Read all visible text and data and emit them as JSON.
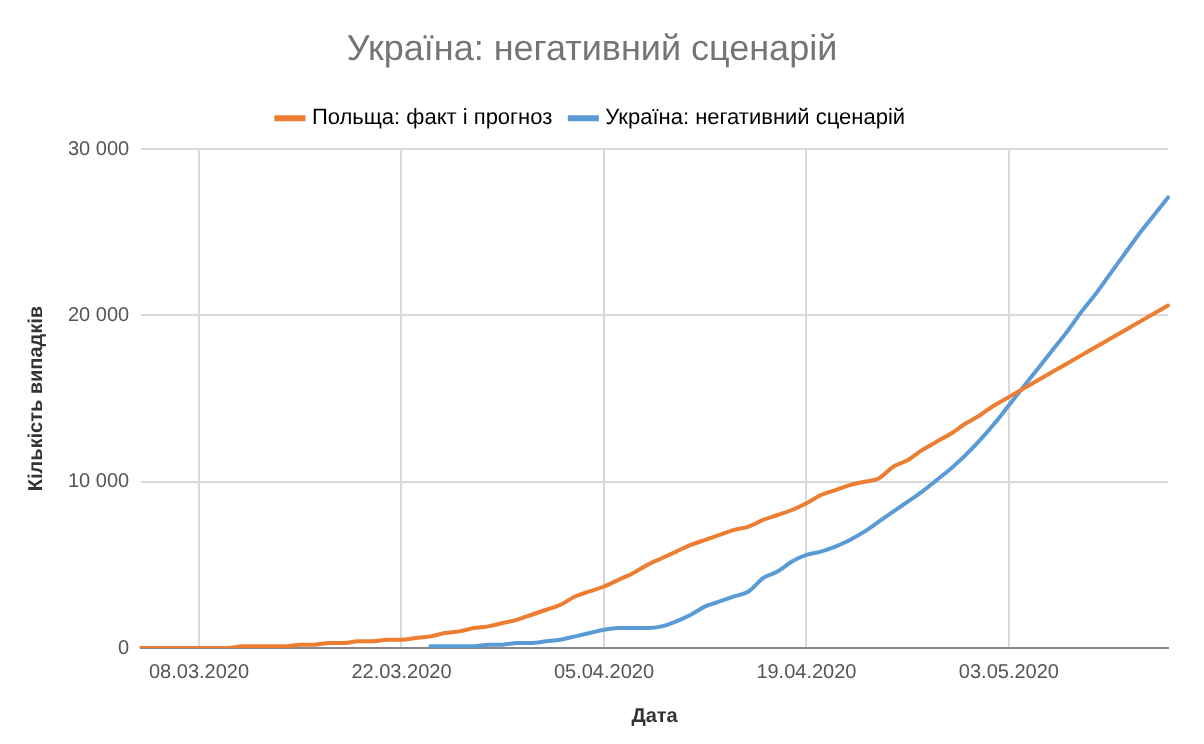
{
  "chart_data": {
    "type": "line",
    "title": "Україна: негативний сценарій",
    "xlabel": "Дата",
    "ylabel": "Кількість випадків",
    "categories": [
      null,
      null,
      null,
      null,
      "08.03.2020",
      null,
      null,
      null,
      null,
      null,
      null,
      null,
      null,
      null,
      null,
      null,
      null,
      null,
      "22.03.2020",
      null,
      null,
      null,
      null,
      null,
      null,
      null,
      null,
      null,
      null,
      null,
      null,
      null,
      "05.04.2020",
      null,
      null,
      null,
      null,
      null,
      null,
      null,
      null,
      null,
      null,
      null,
      null,
      null,
      "19.04.2020",
      null,
      null,
      null,
      null,
      null,
      null,
      null,
      null,
      null,
      null,
      null,
      null,
      null,
      "03.05.2020",
      null,
      null,
      null,
      null,
      null,
      null,
      null,
      null,
      null,
      null,
      null
    ],
    "series": [
      {
        "name": "Польща: факт і прогноз",
        "color": "#ed7d31",
        "values": [
          0,
          0,
          0,
          0,
          0,
          0,
          0,
          100,
          100,
          100,
          100,
          200,
          200,
          300,
          300,
          400,
          400,
          500,
          500,
          600,
          700,
          900,
          1000,
          1200,
          1300,
          1500,
          1700,
          2000,
          2300,
          2600,
          3100,
          3400,
          3700,
          4100,
          4500,
          5000,
          5400,
          5800,
          6200,
          6500,
          6800,
          7100,
          7300,
          7700,
          8000,
          8300,
          8700,
          9200,
          9500,
          9800,
          10000,
          10200,
          10900,
          11300,
          11900,
          12400,
          12900,
          13500,
          14000,
          14600,
          15100,
          15600,
          16100,
          16600,
          17100,
          17600,
          18100,
          18600,
          19100,
          19600,
          20100,
          20600
        ]
      },
      {
        "name": "Україна: негативний сценарій",
        "color": "#5b9bd5",
        "values": [
          null,
          null,
          null,
          null,
          null,
          null,
          null,
          null,
          null,
          null,
          null,
          null,
          null,
          null,
          null,
          null,
          null,
          null,
          null,
          null,
          100,
          100,
          100,
          100,
          200,
          200,
          300,
          300,
          400,
          500,
          700,
          900,
          1100,
          1200,
          1200,
          1200,
          1300,
          1600,
          2000,
          2500,
          2800,
          3100,
          3400,
          4200,
          4600,
          5200,
          5600,
          5800,
          6100,
          6500,
          7000,
          7600,
          8200,
          8800,
          9400,
          10100,
          10800,
          11600,
          12500,
          13500,
          14600,
          15700,
          16800,
          17900,
          19000,
          20200,
          21300,
          22500,
          23700,
          24900,
          26000,
          27100
        ]
      }
    ],
    "ylim": [
      0,
      30000
    ],
    "yticks": [
      {
        "value": 0,
        "label": "0"
      },
      {
        "value": 10000,
        "label": "10 000"
      },
      {
        "value": 20000,
        "label": "20 000"
      },
      {
        "value": 30000,
        "label": "30 000"
      }
    ],
    "grid": true,
    "legend": "top",
    "marker": "none",
    "line_style": "solid"
  }
}
